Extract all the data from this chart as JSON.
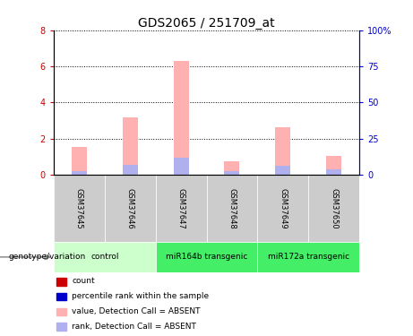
{
  "title": "GDS2065 / 251709_at",
  "samples": [
    "GSM37645",
    "GSM37646",
    "GSM37647",
    "GSM37648",
    "GSM37649",
    "GSM37650"
  ],
  "pink_bars": [
    1.55,
    3.2,
    6.3,
    0.75,
    2.65,
    1.05
  ],
  "blue_bars": [
    0.22,
    0.55,
    0.95,
    0.22,
    0.5,
    0.28
  ],
  "ylim_left": [
    0,
    8
  ],
  "ylim_right": [
    0,
    100
  ],
  "yticks_left": [
    0,
    2,
    4,
    6,
    8
  ],
  "yticks_right": [
    0,
    25,
    50,
    75,
    100
  ],
  "ytick_labels_right": [
    "0",
    "25",
    "50",
    "75",
    "100%"
  ],
  "sample_box_color": "#cccccc",
  "pink_color": "#ffb0b0",
  "blue_color": "#b0b0ee",
  "red_color": "#cc0000",
  "dark_blue": "#0000cc",
  "group_spans": [
    {
      "start": 0,
      "end": 2,
      "label": "control",
      "color": "#ccffcc"
    },
    {
      "start": 2,
      "end": 4,
      "label": "miR164b transgenic",
      "color": "#44ee66"
    },
    {
      "start": 4,
      "end": 6,
      "label": "miR172a transgenic",
      "color": "#44ee66"
    }
  ],
  "legend_items": [
    {
      "label": "count",
      "color": "#cc0000"
    },
    {
      "label": "percentile rank within the sample",
      "color": "#0000cc"
    },
    {
      "label": "value, Detection Call = ABSENT",
      "color": "#ffb0b0"
    },
    {
      "label": "rank, Detection Call = ABSENT",
      "color": "#b0b0ee"
    }
  ],
  "arrow_label": "genotype/variation",
  "title_fontsize": 10
}
